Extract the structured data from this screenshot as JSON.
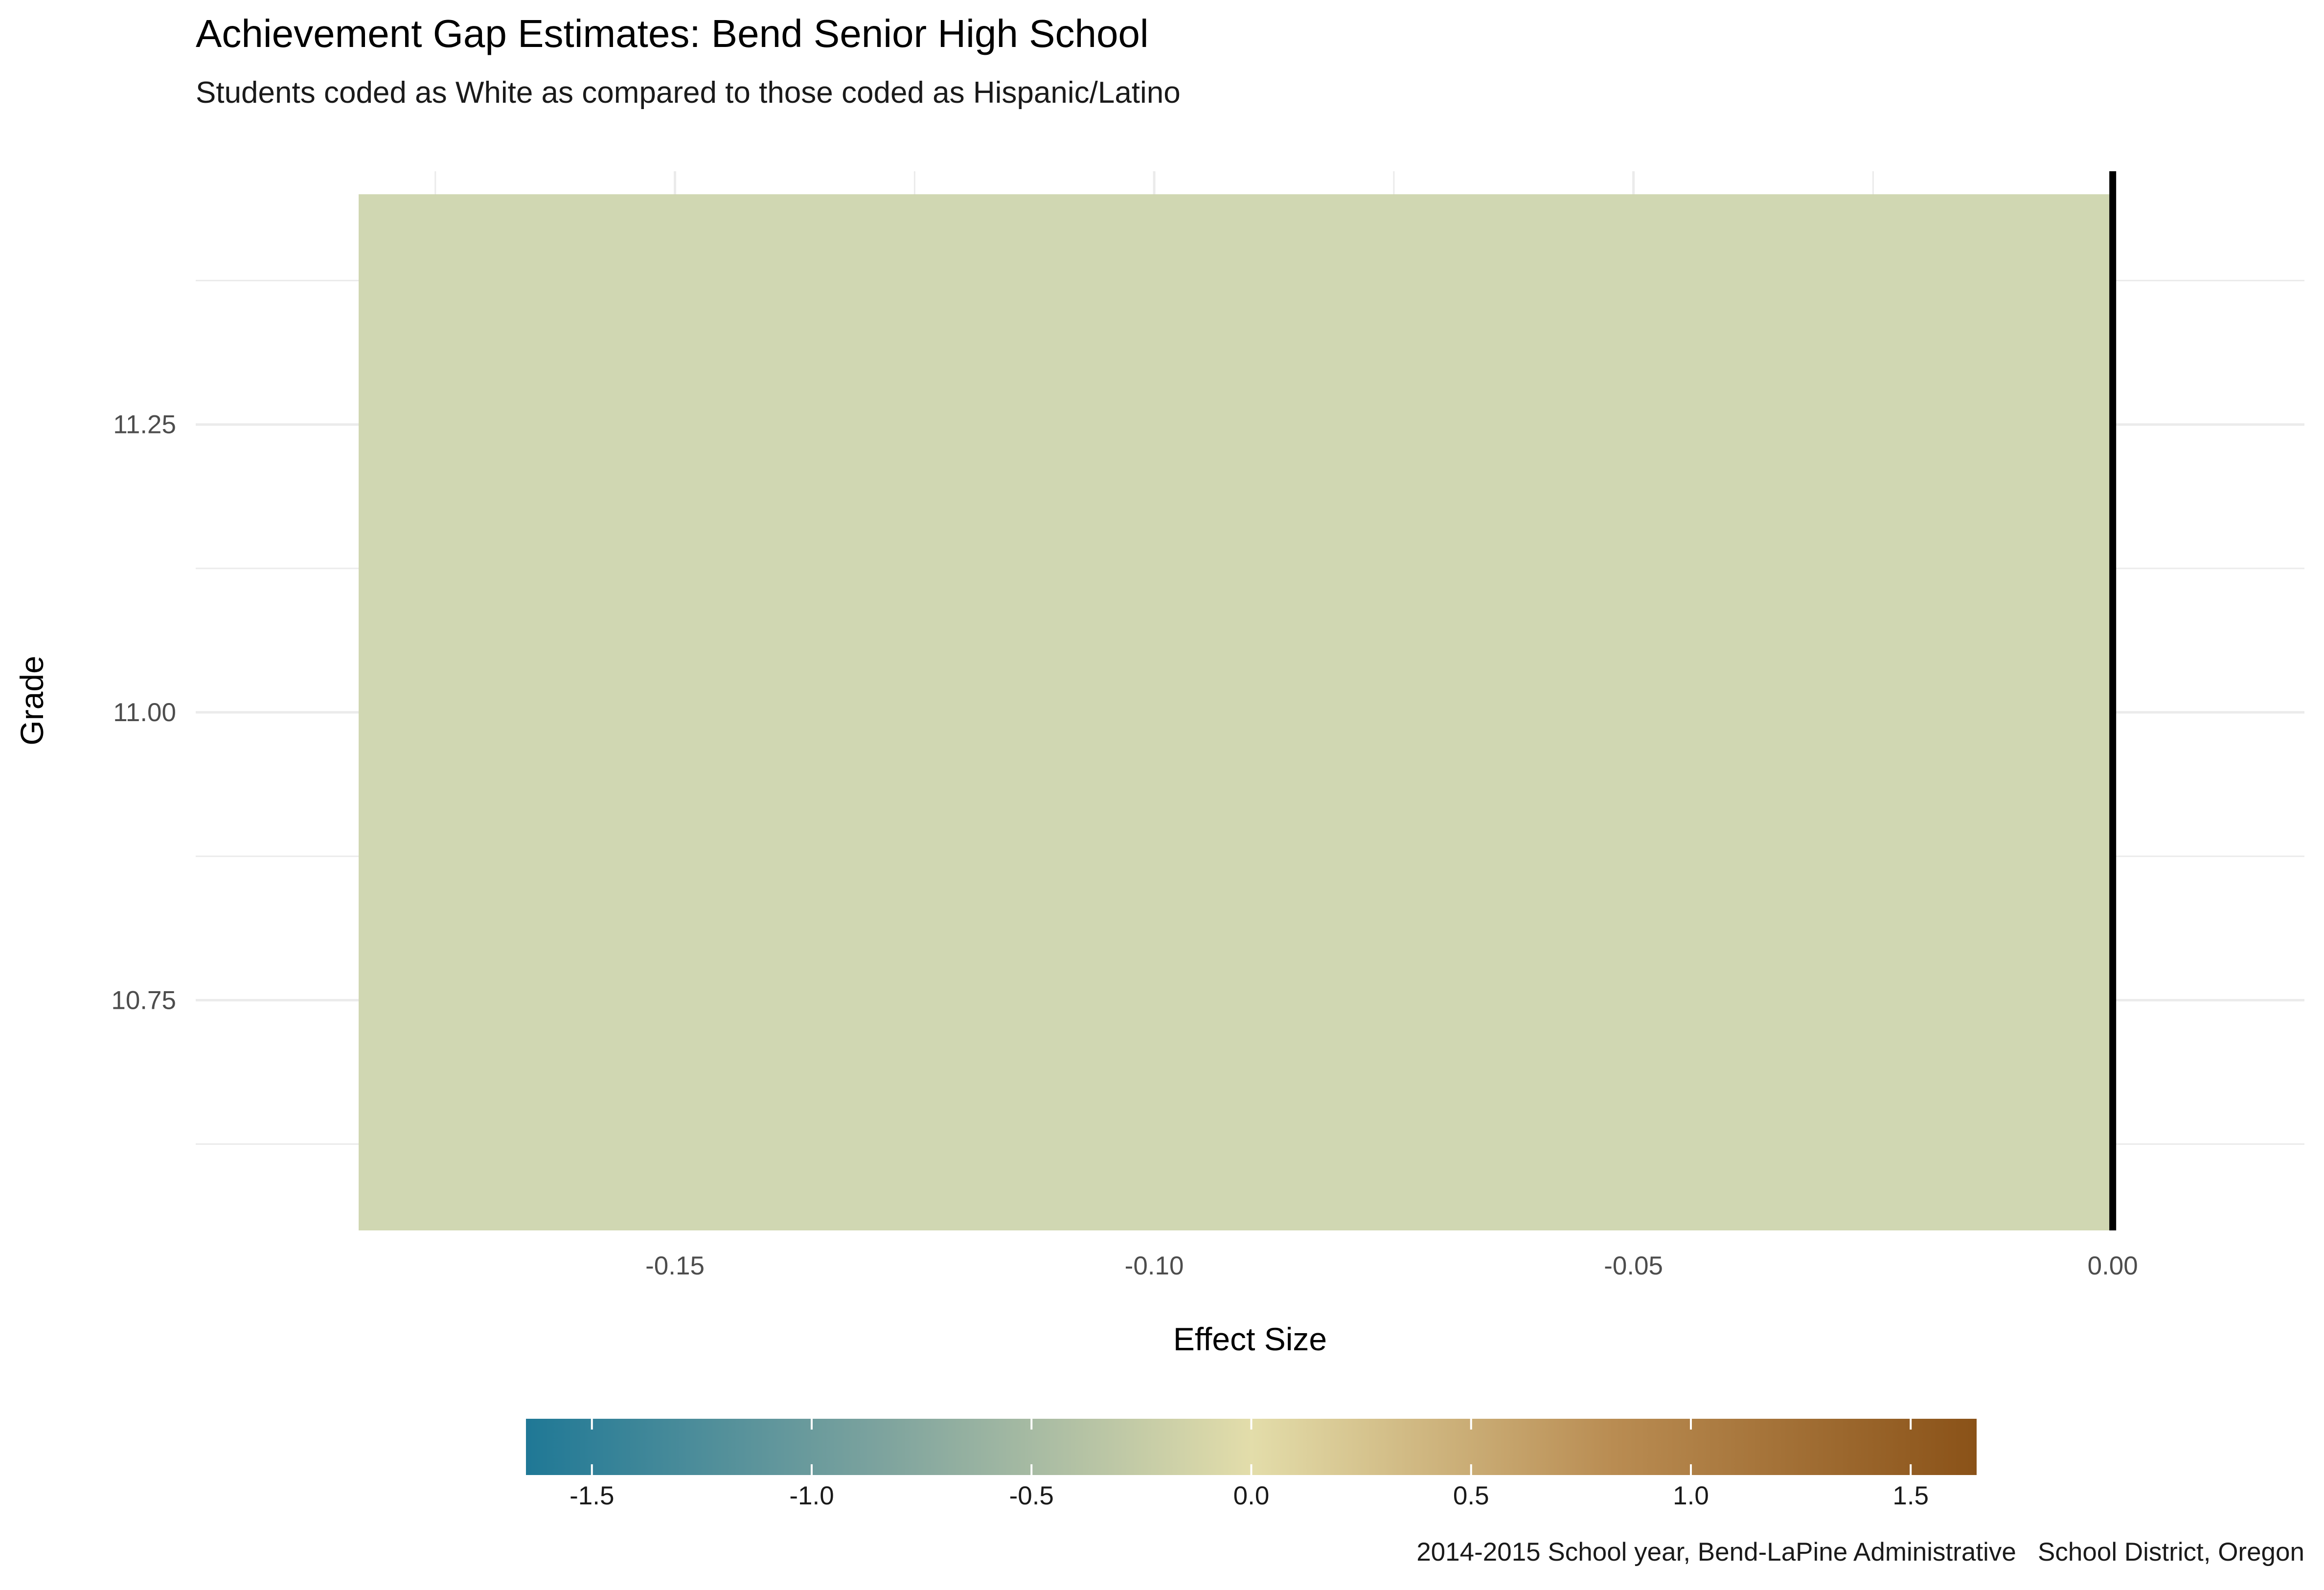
{
  "chart_data": {
    "type": "bar",
    "title": "Achievement Gap Estimates: Bend Senior High School",
    "subtitle": "Students coded as White as compared to those coded as Hispanic/Latino",
    "xlabel": "Effect Size",
    "ylabel": "Grade",
    "orientation": "horizontal",
    "bars": [
      {
        "grade": 11,
        "effect_size": -0.183,
        "color": "#d0d7b2"
      }
    ],
    "xlim": [
      -0.2,
      0.02
    ],
    "ylim": [
      10.55,
      11.47
    ],
    "x_ticks": [
      -0.15,
      -0.1,
      -0.05,
      0.0
    ],
    "x_tick_labels": [
      "-0.15",
      "-0.10",
      "-0.05",
      "0.00"
    ],
    "y_ticks": [
      10.75,
      11.0,
      11.25
    ],
    "y_tick_labels": [
      "10.75",
      "11.00",
      "11.25"
    ],
    "reference_line": {
      "x": 0.0,
      "color": "#000000"
    },
    "grid": true,
    "legend": {
      "position": "bottom",
      "type": "colorbar",
      "range": [
        -1.65,
        1.65
      ],
      "ticks": [
        -1.5,
        -1.0,
        -0.5,
        0.0,
        0.5,
        1.0,
        1.5
      ],
      "tick_labels": [
        "-1.5",
        "-1.0",
        "-0.5",
        "0.0",
        "0.5",
        "1.0",
        "1.5"
      ],
      "colors": [
        "#1f7896",
        "#7fa49e",
        "#e3ddaa",
        "#b98c52",
        "#8a5218"
      ]
    },
    "caption": "2014-2015 School year, Bend-LaPine Administrative   School District, Oregon"
  }
}
